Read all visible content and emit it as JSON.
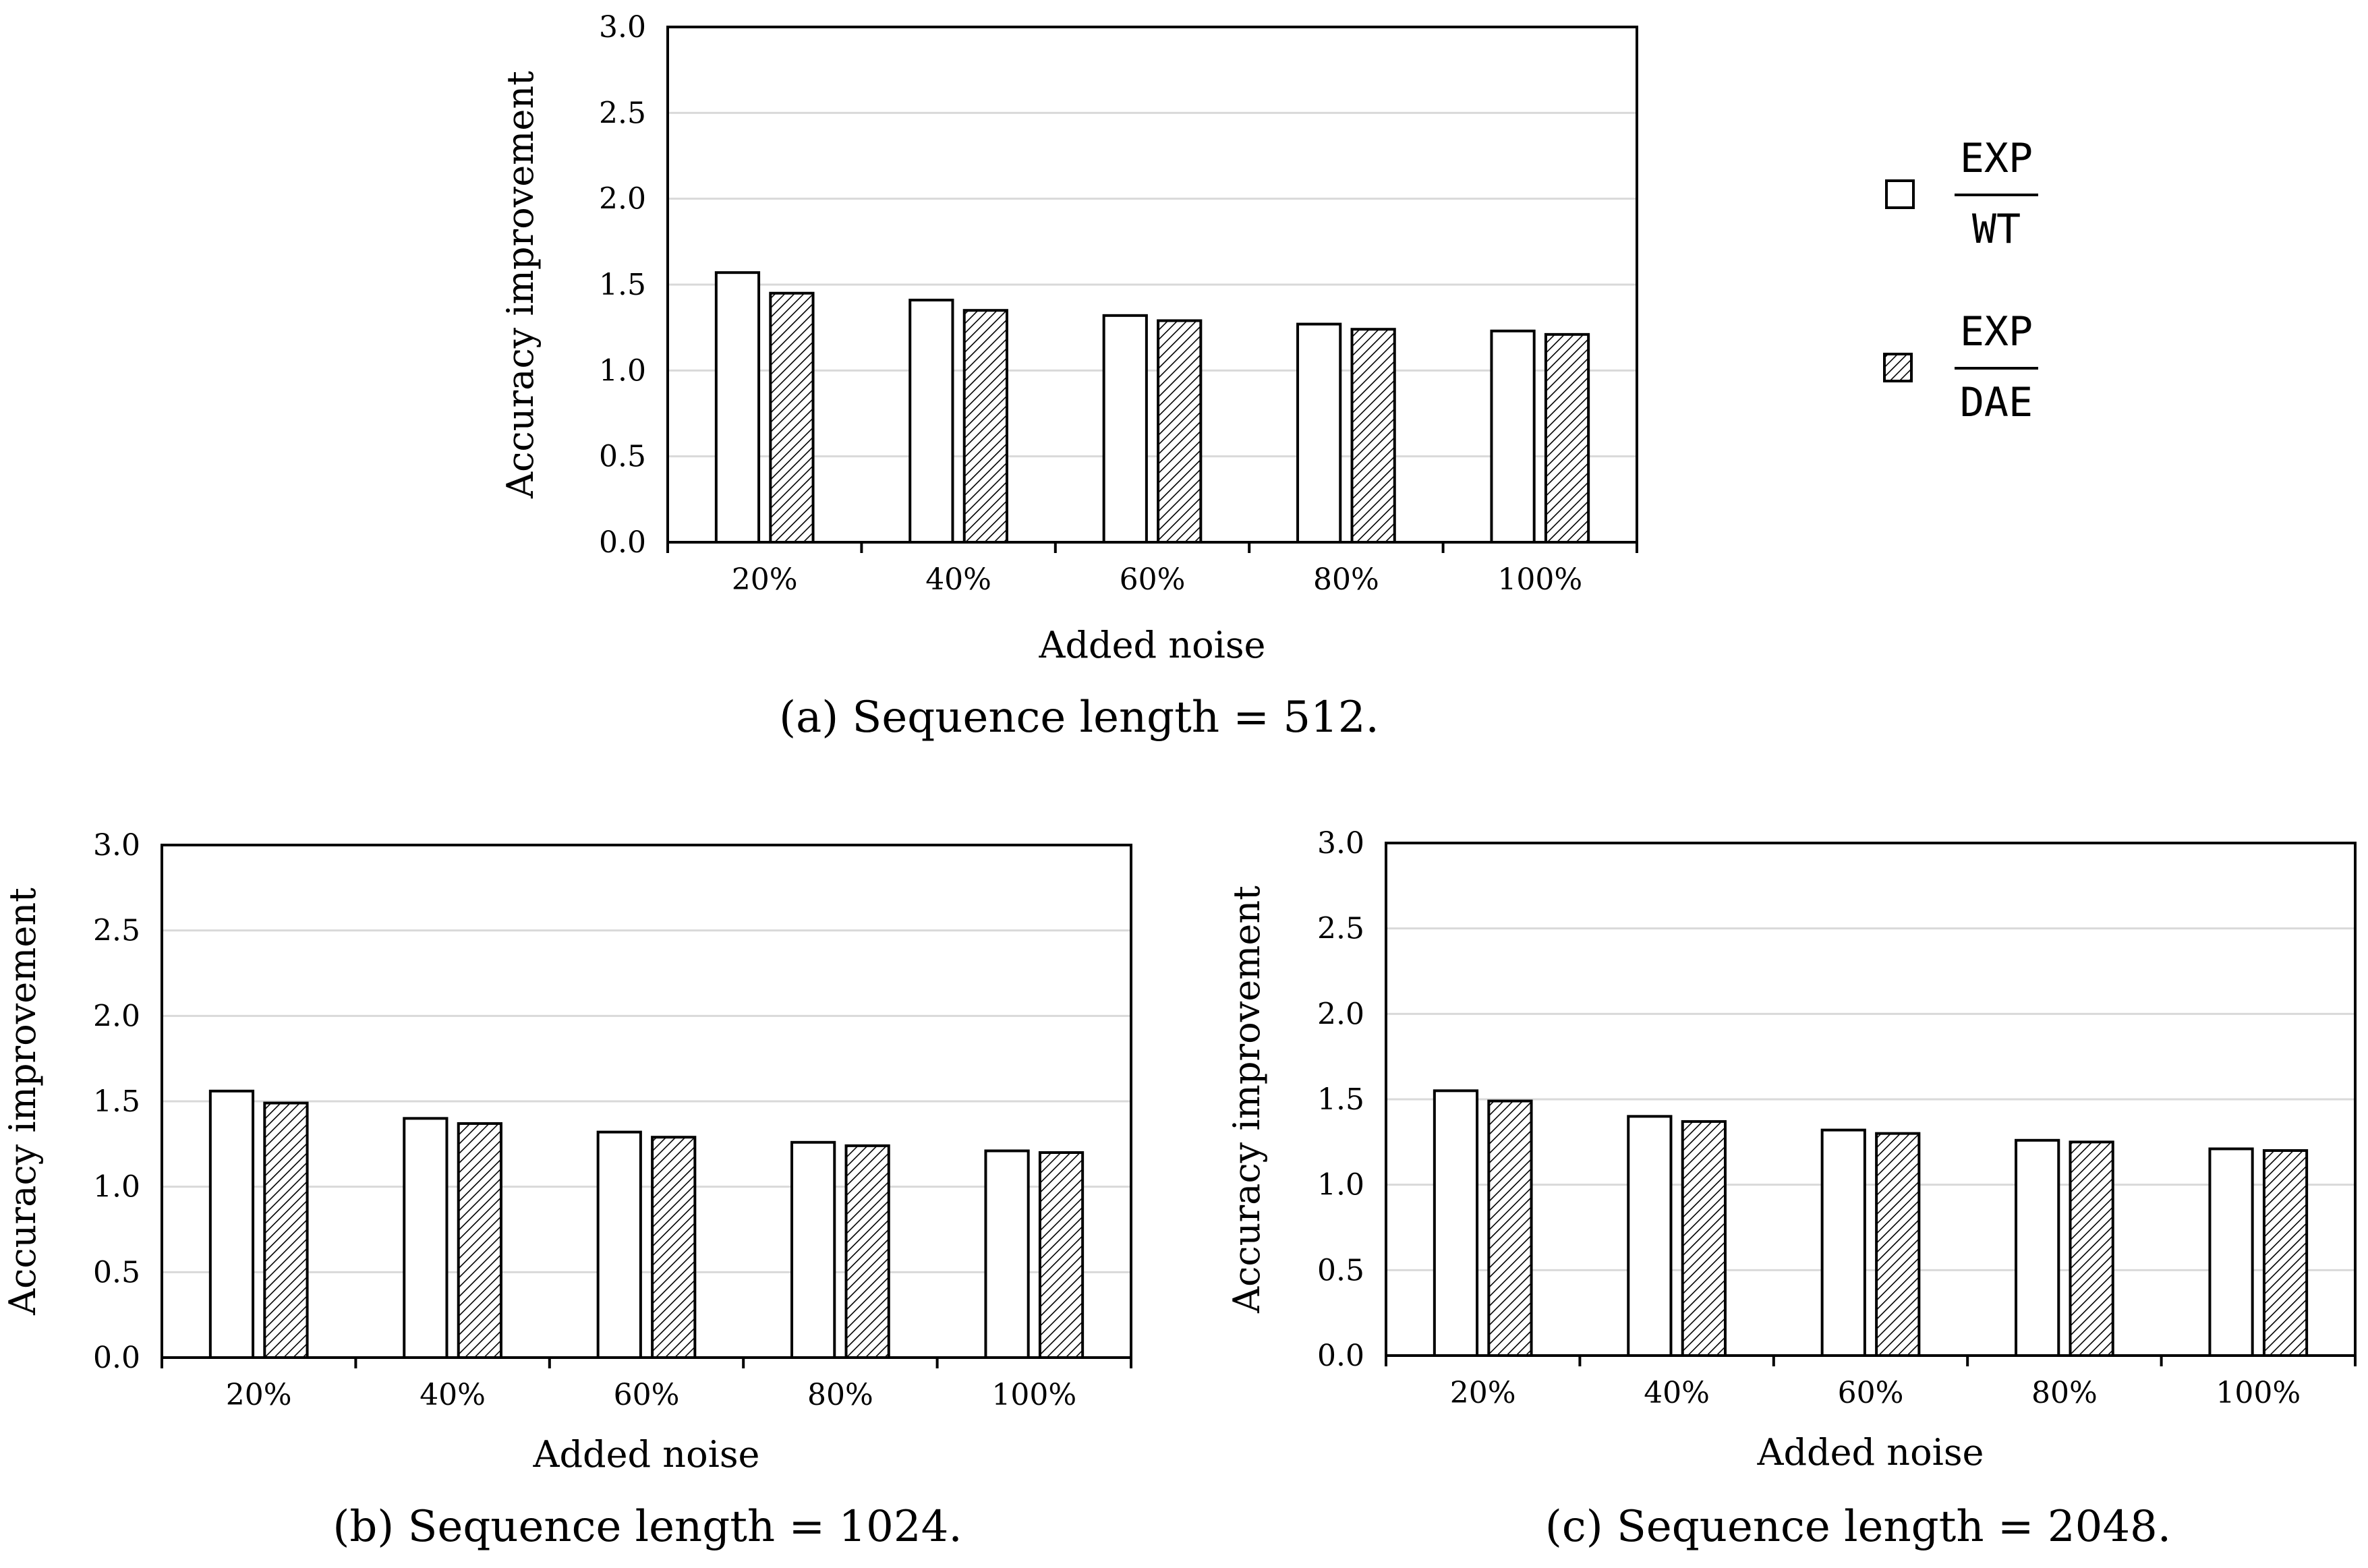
{
  "colors": {
    "bar_white": "#ffffff",
    "bar_hatch": "#000000",
    "gridline": "#d9d9d9",
    "axis": "#000000"
  },
  "legend": {
    "items": [
      {
        "numerator": "EXP",
        "denominator": "WT",
        "swatch": "plain"
      },
      {
        "numerator": "EXP",
        "denominator": "DAE",
        "swatch": "hatched"
      }
    ]
  },
  "chart_data": [
    {
      "type": "bar",
      "title": "(a) Sequence length = 512.",
      "xlabel": "Added noise",
      "ylabel": "Accuracy improvement",
      "categories": [
        "20%",
        "40%",
        "60%",
        "80%",
        "100%"
      ],
      "ylim": [
        0,
        3
      ],
      "yticks": [
        "0.0",
        "0.5",
        "1.0",
        "1.5",
        "2.0",
        "2.5",
        "3.0"
      ],
      "grid": true,
      "series": [
        {
          "name": "EXP/WT",
          "values": [
            1.57,
            1.41,
            1.32,
            1.27,
            1.23
          ]
        },
        {
          "name": "EXP/DAE",
          "values": [
            1.45,
            1.35,
            1.29,
            1.24,
            1.21
          ]
        }
      ]
    },
    {
      "type": "bar",
      "title": "(b) Sequence length = 1024.",
      "xlabel": "Added noise",
      "ylabel": "Accuracy improvement",
      "categories": [
        "20%",
        "40%",
        "60%",
        "80%",
        "100%"
      ],
      "ylim": [
        0,
        3
      ],
      "yticks": [
        "0.0",
        "0.5",
        "1.0",
        "1.5",
        "2.0",
        "2.5",
        "3.0"
      ],
      "grid": true,
      "series": [
        {
          "name": "EXP/WT",
          "values": [
            1.56,
            1.4,
            1.32,
            1.26,
            1.21
          ]
        },
        {
          "name": "EXP/DAE",
          "values": [
            1.49,
            1.37,
            1.29,
            1.24,
            1.2
          ]
        }
      ]
    },
    {
      "type": "bar",
      "title": "(c) Sequence length = 2048.",
      "xlabel": "Added noise",
      "ylabel": "Accuracy improvement",
      "categories": [
        "20%",
        "40%",
        "60%",
        "80%",
        "100%"
      ],
      "ylim": [
        0,
        3
      ],
      "yticks": [
        "0.0",
        "0.5",
        "1.0",
        "1.5",
        "2.0",
        "2.5",
        "3.0"
      ],
      "grid": true,
      "series": [
        {
          "name": "EXP/WT",
          "values": [
            1.55,
            1.4,
            1.32,
            1.26,
            1.21
          ]
        },
        {
          "name": "EXP/DAE",
          "values": [
            1.49,
            1.37,
            1.3,
            1.25,
            1.2
          ]
        }
      ]
    }
  ]
}
